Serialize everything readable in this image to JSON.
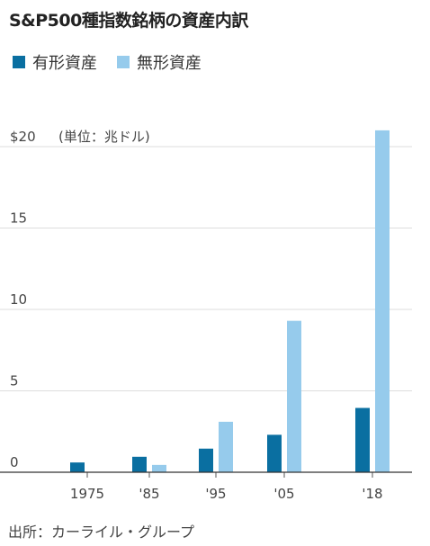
{
  "title": "S&P500種指数銘柄の資産内訳",
  "source": "出所：カーライル・グループ",
  "chart_data": {
    "type": "bar",
    "title": "S&P500種指数銘柄の資産内訳",
    "unit_label": "(単位：兆ドル)",
    "categories": [
      "1975",
      "'85",
      "'95",
      "'05",
      "'18"
    ],
    "series": [
      {
        "name": "有形資産",
        "color": "#0a6fa1",
        "values": [
          0.6,
          0.95,
          1.45,
          2.3,
          3.95
        ]
      },
      {
        "name": "無形資産",
        "color": "#96cbec",
        "values": [
          0.0,
          0.45,
          3.1,
          9.3,
          21.0
        ]
      }
    ],
    "ylim": [
      0,
      21
    ],
    "yticks": [
      {
        "value": 0,
        "label": "0"
      },
      {
        "value": 5,
        "label": "5"
      },
      {
        "value": 10,
        "label": "10"
      },
      {
        "value": 15,
        "label": "15"
      },
      {
        "value": 20,
        "label": "$20"
      }
    ],
    "grid": true,
    "legend": "top-left"
  }
}
